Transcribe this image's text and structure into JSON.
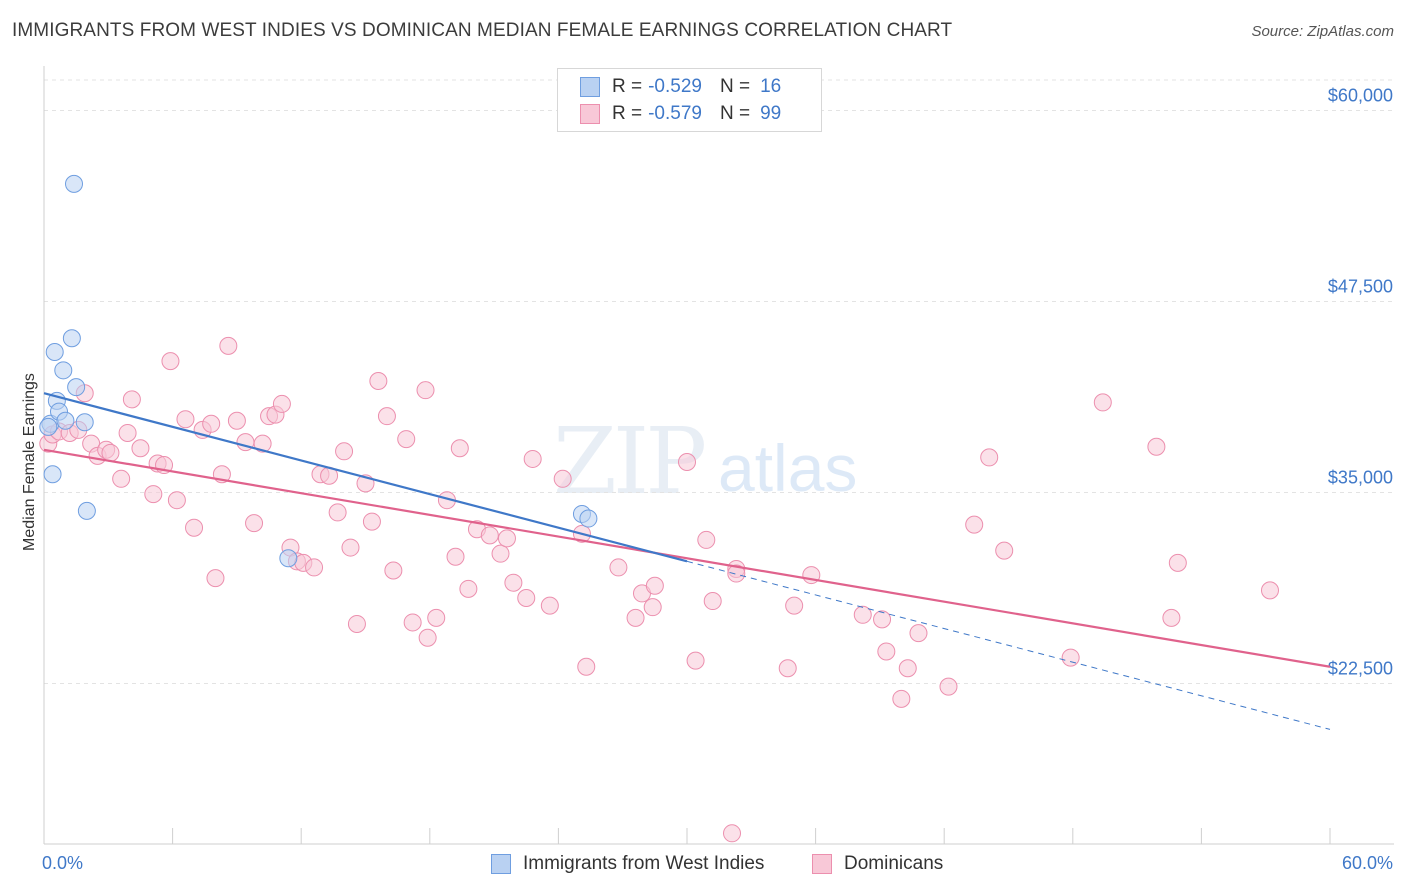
{
  "header": {
    "title": "IMMIGRANTS FROM WEST INDIES VS DOMINICAN MEDIAN FEMALE EARNINGS CORRELATION CHART",
    "source": "Source: ZipAtlas.com"
  },
  "watermark": {
    "part1": "ZIP",
    "part2": "atlas"
  },
  "legend": {
    "rows": [
      {
        "r_label": "R =",
        "r_value": "-0.529",
        "n_label": "N =",
        "n_value": "16",
        "fill": "#b9d1f2",
        "stroke": "#6f9ee0"
      },
      {
        "r_label": "R =",
        "r_value": "-0.579",
        "n_label": "N =",
        "n_value": "99",
        "fill": "#f8c8d7",
        "stroke": "#ec8fae"
      }
    ]
  },
  "bottom_legend": {
    "items": [
      {
        "label": "Immigrants from West Indies",
        "fill": "#b9d1f2",
        "stroke": "#6f9ee0"
      },
      {
        "label": "Dominicans",
        "fill": "#f8c8d7",
        "stroke": "#ec8fae"
      }
    ]
  },
  "chart_data": {
    "type": "scatter",
    "ylabel": "Median Female Earnings",
    "xlim": [
      0,
      60
    ],
    "ylim": [
      12000,
      62000
    ],
    "x_tick_labels": [
      "0.0%",
      "60.0%"
    ],
    "y_ticks": [
      22500,
      35000,
      47500,
      60000
    ],
    "y_tick_labels": [
      "$22,500",
      "$35,000",
      "$47,500",
      "$60,000"
    ],
    "grid": "horizontal dashed",
    "colors": {
      "blue": "#3f78c8",
      "pink": "#e0628c"
    },
    "series": [
      {
        "name": "Immigrants from West Indies",
        "color": "#6f9ee0",
        "fill": "#b9d1f2",
        "points": [
          [
            0.3,
            39.5
          ],
          [
            0.4,
            36.2
          ],
          [
            0.5,
            44.2
          ],
          [
            0.6,
            41.0
          ],
          [
            0.7,
            40.3
          ],
          [
            0.9,
            43.0
          ],
          [
            1.0,
            39.7
          ],
          [
            1.3,
            45.1
          ],
          [
            1.4,
            55.2
          ],
          [
            1.5,
            41.9
          ],
          [
            1.9,
            39.6
          ],
          [
            2.0,
            33.8
          ],
          [
            11.4,
            30.7
          ],
          [
            25.1,
            33.6
          ],
          [
            25.4,
            33.3
          ],
          [
            0.2,
            39.3
          ]
        ],
        "trend": {
          "x": [
            0.0,
            30.0
          ],
          "y": [
            41.5,
            30.5
          ]
        },
        "trend_extension": {
          "x": [
            30.0,
            60.0
          ],
          "y": [
            30.5,
            19.5
          ]
        }
      },
      {
        "name": "Dominicans",
        "color": "#ec8fae",
        "fill": "#f8c8d7",
        "points": [
          [
            0.2,
            38.2
          ],
          [
            0.4,
            38.8
          ],
          [
            0.7,
            39.0
          ],
          [
            1.2,
            38.9
          ],
          [
            1.6,
            39.1
          ],
          [
            1.9,
            41.5
          ],
          [
            2.2,
            38.2
          ],
          [
            2.5,
            37.4
          ],
          [
            2.9,
            37.8
          ],
          [
            3.6,
            35.9
          ],
          [
            3.9,
            38.9
          ],
          [
            4.1,
            41.1
          ],
          [
            4.5,
            37.9
          ],
          [
            5.1,
            34.9
          ],
          [
            5.3,
            36.9
          ],
          [
            5.6,
            36.8
          ],
          [
            5.9,
            43.6
          ],
          [
            6.2,
            34.5
          ],
          [
            6.6,
            39.8
          ],
          [
            7.0,
            32.7
          ],
          [
            7.4,
            39.1
          ],
          [
            7.8,
            39.5
          ],
          [
            8.0,
            29.4
          ],
          [
            8.3,
            36.2
          ],
          [
            8.6,
            44.6
          ],
          [
            9.0,
            39.7
          ],
          [
            9.4,
            38.3
          ],
          [
            9.8,
            33.0
          ],
          [
            10.2,
            38.2
          ],
          [
            10.5,
            40.0
          ],
          [
            10.8,
            40.1
          ],
          [
            11.1,
            40.8
          ],
          [
            11.5,
            31.4
          ],
          [
            11.8,
            30.5
          ],
          [
            12.1,
            30.4
          ],
          [
            12.6,
            30.1
          ],
          [
            12.9,
            36.2
          ],
          [
            13.3,
            36.1
          ],
          [
            13.7,
            33.7
          ],
          [
            14.0,
            37.7
          ],
          [
            14.3,
            31.4
          ],
          [
            14.6,
            26.4
          ],
          [
            15.0,
            35.6
          ],
          [
            15.3,
            33.1
          ],
          [
            15.6,
            42.3
          ],
          [
            16.0,
            40.0
          ],
          [
            16.3,
            29.9
          ],
          [
            16.9,
            38.5
          ],
          [
            17.2,
            26.5
          ],
          [
            17.8,
            41.7
          ],
          [
            17.9,
            25.5
          ],
          [
            18.3,
            26.8
          ],
          [
            18.8,
            34.5
          ],
          [
            19.2,
            30.8
          ],
          [
            19.4,
            37.9
          ],
          [
            19.8,
            28.7
          ],
          [
            20.2,
            32.6
          ],
          [
            20.8,
            32.2
          ],
          [
            21.3,
            31.0
          ],
          [
            21.6,
            32.0
          ],
          [
            21.9,
            29.1
          ],
          [
            22.5,
            28.1
          ],
          [
            22.8,
            37.2
          ],
          [
            23.6,
            27.6
          ],
          [
            24.2,
            35.9
          ],
          [
            25.1,
            32.3
          ],
          [
            25.3,
            23.6
          ],
          [
            26.8,
            30.1
          ],
          [
            27.6,
            26.8
          ],
          [
            27.9,
            28.4
          ],
          [
            28.4,
            27.5
          ],
          [
            28.5,
            28.9
          ],
          [
            30.0,
            37.0
          ],
          [
            30.4,
            24.0
          ],
          [
            30.9,
            31.9
          ],
          [
            31.2,
            27.9
          ],
          [
            32.1,
            12.7
          ],
          [
            32.3,
            30.0
          ],
          [
            32.3,
            29.7
          ],
          [
            34.7,
            23.5
          ],
          [
            35.0,
            27.6
          ],
          [
            35.8,
            29.6
          ],
          [
            38.2,
            27.0
          ],
          [
            39.1,
            26.7
          ],
          [
            39.3,
            24.6
          ],
          [
            40.0,
            21.5
          ],
          [
            40.3,
            23.5
          ],
          [
            40.8,
            25.8
          ],
          [
            42.2,
            22.3
          ],
          [
            43.4,
            32.9
          ],
          [
            44.1,
            37.3
          ],
          [
            44.8,
            31.2
          ],
          [
            47.9,
            24.2
          ],
          [
            49.4,
            40.9
          ],
          [
            51.9,
            38.0
          ],
          [
            52.6,
            26.8
          ],
          [
            52.9,
            30.4
          ],
          [
            57.2,
            28.6
          ],
          [
            3.1,
            37.6
          ]
        ],
        "trend": {
          "x": [
            0.0,
            60.0
          ],
          "y": [
            37.8,
            23.6
          ]
        }
      }
    ]
  }
}
